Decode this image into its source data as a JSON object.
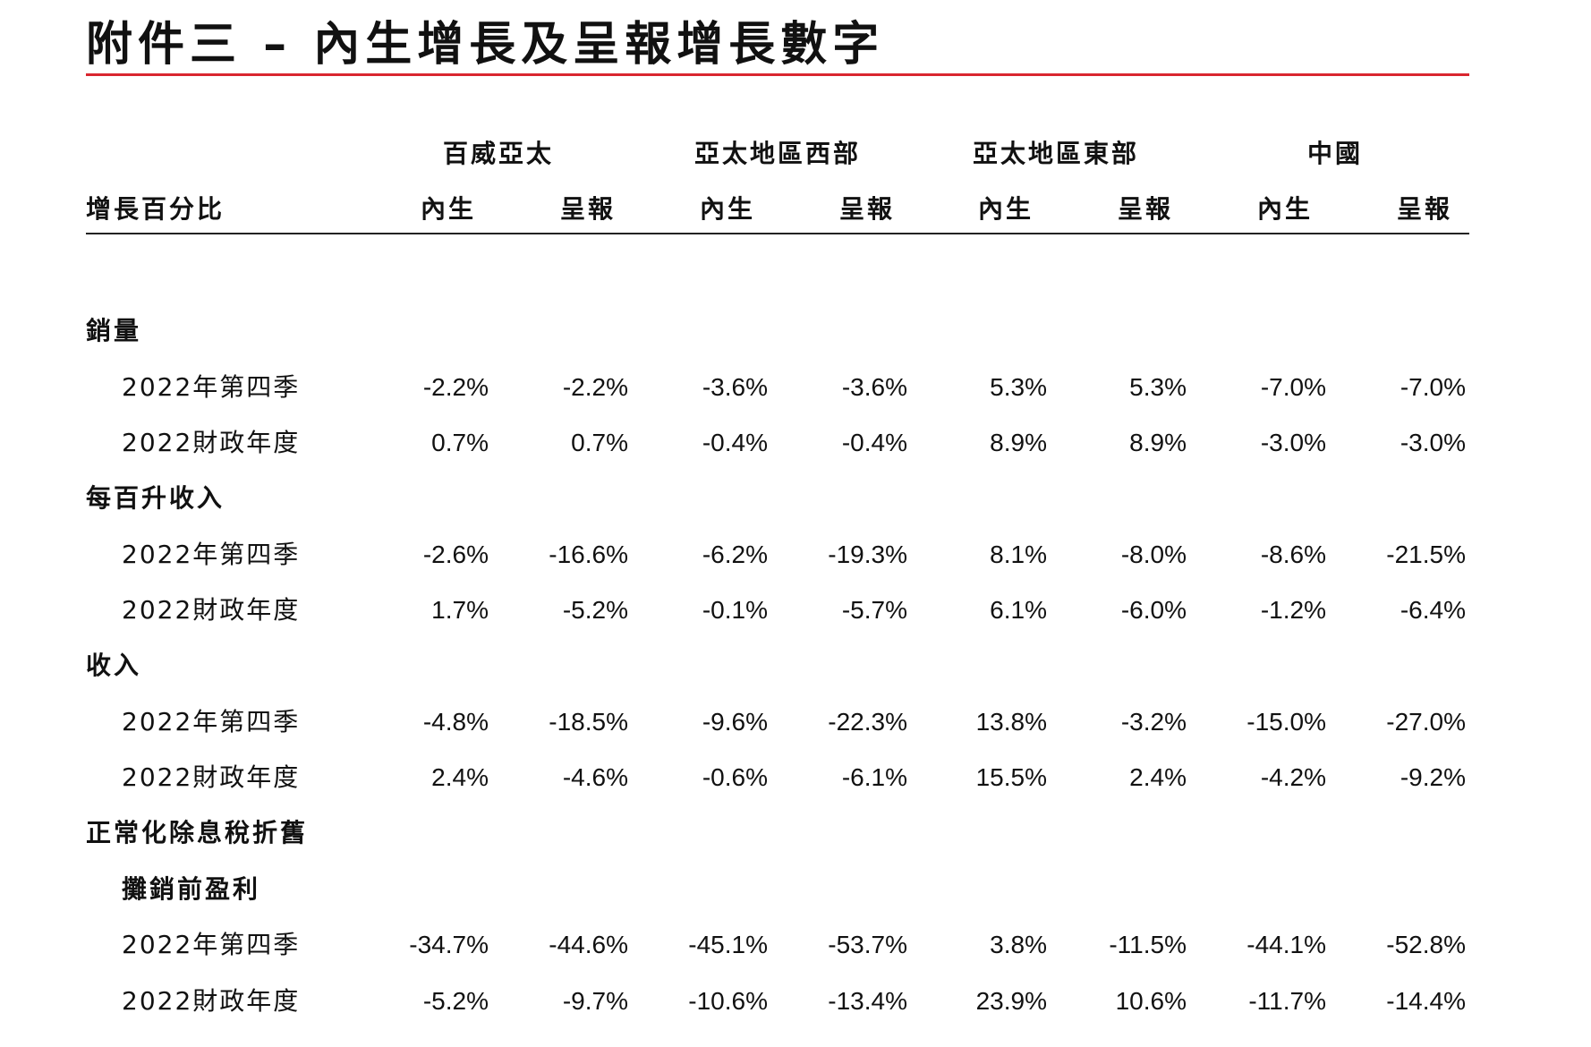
{
  "title": "附件三 – 內生增長及呈報增長數字",
  "header": {
    "row_label": "增長百分比",
    "regions": [
      "百威亞太",
      "亞太地區西部",
      "亞太地區東部",
      "中國"
    ],
    "sub_columns": [
      "內生",
      "呈報"
    ]
  },
  "sections": [
    {
      "label": "銷量",
      "sub_label": "",
      "rows": [
        {
          "label": "2022年第四季",
          "values": [
            "-2.2%",
            "-2.2%",
            "-3.6%",
            "-3.6%",
            "5.3%",
            "5.3%",
            "-7.0%",
            "-7.0%"
          ]
        },
        {
          "label": "2022財政年度",
          "values": [
            "0.7%",
            "0.7%",
            "-0.4%",
            "-0.4%",
            "8.9%",
            "8.9%",
            "-3.0%",
            "-3.0%"
          ]
        }
      ]
    },
    {
      "label": "每百升收入",
      "sub_label": "",
      "rows": [
        {
          "label": "2022年第四季",
          "values": [
            "-2.6%",
            "-16.6%",
            "-6.2%",
            "-19.3%",
            "8.1%",
            "-8.0%",
            "-8.6%",
            "-21.5%"
          ]
        },
        {
          "label": "2022財政年度",
          "values": [
            "1.7%",
            "-5.2%",
            "-0.1%",
            "-5.7%",
            "6.1%",
            "-6.0%",
            "-1.2%",
            "-6.4%"
          ]
        }
      ]
    },
    {
      "label": "收入",
      "sub_label": "",
      "rows": [
        {
          "label": "2022年第四季",
          "values": [
            "-4.8%",
            "-18.5%",
            "-9.6%",
            "-22.3%",
            "13.8%",
            "-3.2%",
            "-15.0%",
            "-27.0%"
          ]
        },
        {
          "label": "2022財政年度",
          "values": [
            "2.4%",
            "-4.6%",
            "-0.6%",
            "-6.1%",
            "15.5%",
            "2.4%",
            "-4.2%",
            "-9.2%"
          ]
        }
      ]
    },
    {
      "label": "正常化除息稅折舊",
      "sub_label": "攤銷前盈利",
      "rows": [
        {
          "label": "2022年第四季",
          "values": [
            "-34.7%",
            "-44.6%",
            "-45.1%",
            "-53.7%",
            "3.8%",
            "-11.5%",
            "-44.1%",
            "-52.8%"
          ]
        },
        {
          "label": "2022財政年度",
          "values": [
            "-5.2%",
            "-9.7%",
            "-10.6%",
            "-13.4%",
            "23.9%",
            "10.6%",
            "-11.7%",
            "-14.4%"
          ]
        }
      ]
    }
  ],
  "colors": {
    "accent_rule": "#d9262f",
    "text": "#111111"
  }
}
